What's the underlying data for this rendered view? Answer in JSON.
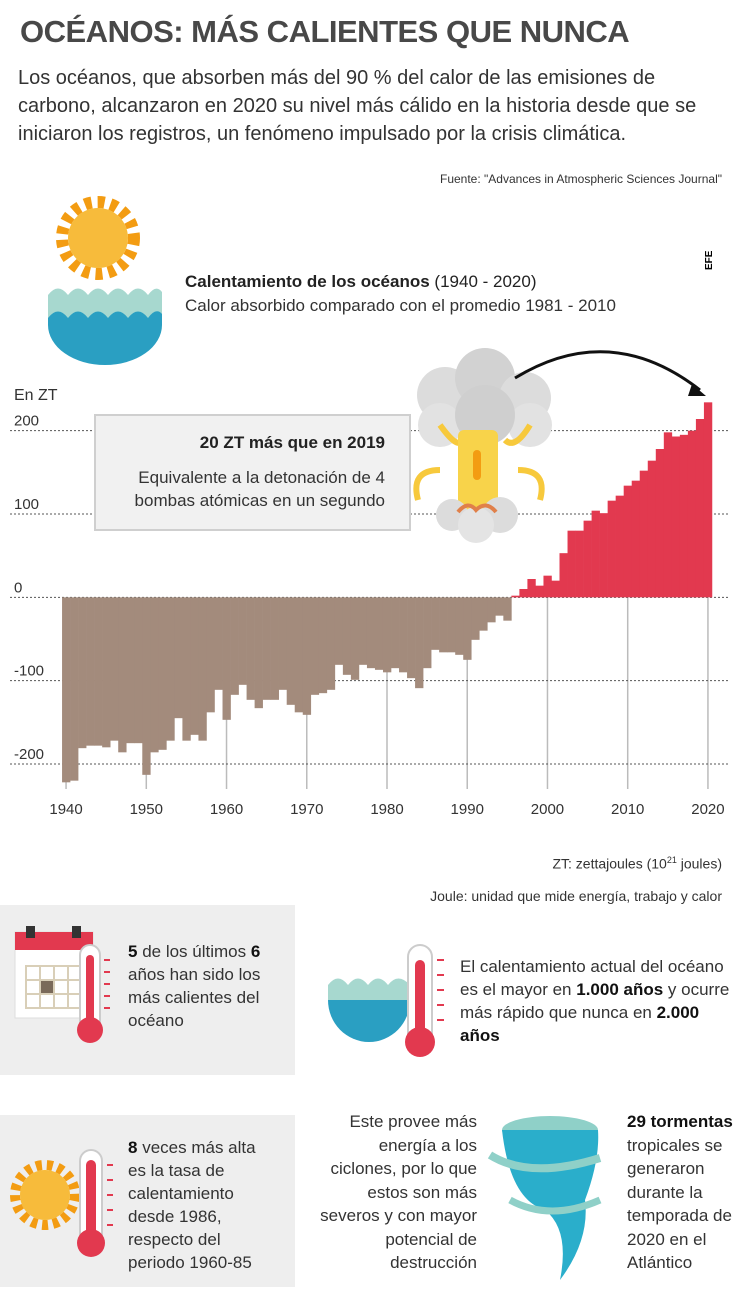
{
  "header": {
    "title": "OCÉANOS: MÁS CALIENTES QUE NUNCA",
    "subtitle": "Los océanos, que absorben más del 90 % del calor de las emisiones de carbono, alcanzaron en 2020 su nivel más cálido en la historia desde que se iniciaron los registros, un fenómeno impulsado por la crisis climática.",
    "source": "Fuente: \"Advances in Atmospheric Sciences Journal\""
  },
  "logo": "EFE",
  "chart_data": {
    "type": "bar",
    "title": "Calentamiento de los océanos",
    "title_period": "(1940 - 2020)",
    "subtitle": "Calor absorbido comparado con el promedio 1981 - 2010",
    "y_label": "En ZT",
    "x": [
      1940,
      1941,
      1942,
      1943,
      1944,
      1945,
      1946,
      1947,
      1948,
      1949,
      1950,
      1951,
      1952,
      1953,
      1954,
      1955,
      1956,
      1957,
      1958,
      1959,
      1960,
      1961,
      1962,
      1963,
      1964,
      1965,
      1966,
      1967,
      1968,
      1969,
      1970,
      1971,
      1972,
      1973,
      1974,
      1975,
      1976,
      1977,
      1978,
      1979,
      1980,
      1981,
      1982,
      1983,
      1984,
      1985,
      1986,
      1987,
      1988,
      1989,
      1990,
      1991,
      1992,
      1993,
      1994,
      1995,
      1996,
      1997,
      1998,
      1999,
      2000,
      2001,
      2002,
      2003,
      2004,
      2005,
      2006,
      2007,
      2008,
      2009,
      2010,
      2011,
      2012,
      2013,
      2014,
      2015,
      2016,
      2017,
      2018,
      2019,
      2020
    ],
    "values": [
      -222,
      -220,
      -181,
      -178,
      -178,
      -180,
      -172,
      -186,
      -175,
      -175,
      -213,
      -186,
      -183,
      -172,
      -145,
      -172,
      -165,
      -172,
      -138,
      -111,
      -147,
      -117,
      -105,
      -123,
      -133,
      -123,
      -123,
      -111,
      -129,
      -138,
      -141,
      -117,
      -115,
      -111,
      -81,
      -93,
      -99,
      -81,
      -85,
      -87,
      -90,
      -85,
      -90,
      -97,
      -109,
      -85,
      -63,
      -66,
      -66,
      -69,
      -75,
      -51,
      -40,
      -30,
      -22,
      -28,
      2,
      10,
      22,
      14,
      26,
      20,
      53,
      80,
      80,
      92,
      104,
      101,
      116,
      122,
      134,
      140,
      152,
      164,
      178,
      198,
      193,
      195,
      200,
      214,
      234
    ],
    "positive_color": "#e2394f",
    "negative_color": "#a38b7c",
    "xlim": [
      1937.5,
      2022.5
    ],
    "xticks": [
      1940,
      1950,
      1960,
      1970,
      1980,
      1990,
      2000,
      2010,
      2020
    ],
    "ylim": [
      -230,
      250
    ],
    "yticks": [
      200,
      100,
      0,
      -100,
      -200
    ],
    "grid": true,
    "annotation": {
      "title": "20 ZT más que en 2019",
      "text": "Equivalente a la detonación de 4 bombas atómicas en un segundo"
    }
  },
  "notes": {
    "unit_prefix": "ZT: zettajoules (10",
    "unit_exponent": "21",
    "unit_suffix": " joules)",
    "joule": "Joule: unidad que mide energía, trabajo y calor"
  },
  "facts": [
    {
      "segments": [
        {
          "text": "5",
          "bold": true
        },
        {
          "text": " de los últimos "
        },
        {
          "text": "6",
          "bold": true
        },
        {
          "text": " años han sido los más calientes del océano"
        }
      ]
    },
    {
      "segments": [
        {
          "text": "El calentamiento actual del océano es el mayor en "
        },
        {
          "text": "1.000 años",
          "bold": true
        },
        {
          "text": " y ocurre más rápido que nunca en "
        },
        {
          "text": "2.000 años",
          "bold": true
        }
      ]
    },
    {
      "segments": [
        {
          "text": "8",
          "bold": true
        },
        {
          "text": " veces más alta es la tasa de calentamiento desde 1986, respecto del periodo 1960-85"
        }
      ]
    },
    {
      "segments": [
        {
          "text": "Este provee más energía a los ciclones, por lo que estos son más severos y con mayor potencial de destrucción"
        }
      ]
    },
    {
      "segments": [
        {
          "text": "29 tormentas",
          "bold": true
        },
        {
          "text": " tropicales se generaron durante la temporada de 2020 en el Atlántico"
        }
      ]
    }
  ]
}
